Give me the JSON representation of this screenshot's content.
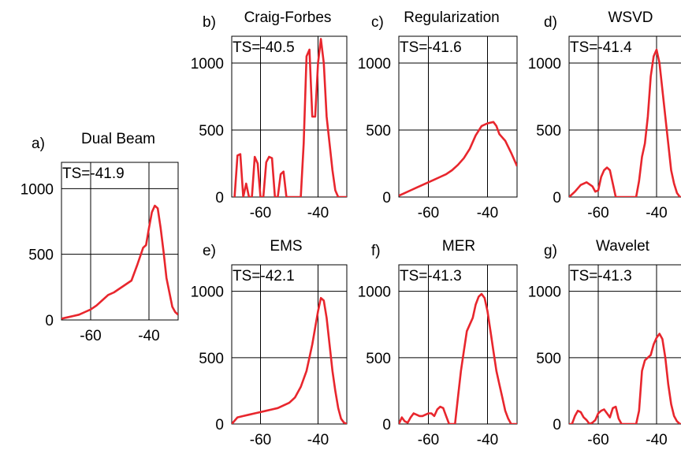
{
  "colors": {
    "line": "#e8262d",
    "axis": "#000000",
    "background": "#ffffff"
  },
  "chart_data": [
    {
      "type": "line",
      "letter": "a)",
      "title": "Dual Beam",
      "annotation": "TS=-41.9",
      "xlim": [
        -70,
        -30
      ],
      "ylim": [
        0,
        1200
      ],
      "xticks": [
        -60,
        -40
      ],
      "xtick_labels": [
        "-60",
        "-40"
      ],
      "yticks": [
        0,
        500,
        1000
      ],
      "ytick_labels": [
        "0",
        "500",
        "1000"
      ],
      "grid": true,
      "series": [
        {
          "x": [
            -70,
            -68,
            -66,
            -64,
            -62,
            -60,
            -58,
            -56,
            -54,
            -52,
            -50,
            -48,
            -46,
            -44,
            -42,
            -41,
            -40,
            -39,
            -38,
            -37,
            -36,
            -35,
            -34,
            -32,
            -31,
            -30
          ],
          "y": [
            10,
            20,
            30,
            40,
            60,
            80,
            110,
            150,
            190,
            210,
            240,
            270,
            300,
            420,
            550,
            570,
            700,
            820,
            870,
            850,
            700,
            520,
            320,
            100,
            60,
            40
          ]
        }
      ]
    },
    {
      "type": "line",
      "letter": "b)",
      "title": "Craig-Forbes",
      "annotation": "TS=-40.5",
      "xlim": [
        -70,
        -30
      ],
      "ylim": [
        0,
        1200
      ],
      "xticks": [
        -60,
        -40
      ],
      "xtick_labels": [
        "-60",
        "-40"
      ],
      "yticks": [
        0,
        500,
        1000
      ],
      "ytick_labels": [
        "0",
        "500",
        "1000"
      ],
      "grid": true,
      "series": [
        {
          "x": [
            -69,
            -68,
            -67,
            -66,
            -65,
            -64,
            -63,
            -62,
            -61,
            -60,
            -59,
            -58,
            -57,
            -56,
            -55,
            -54,
            -53,
            -52,
            -51,
            -50,
            -49,
            -48,
            -47,
            -46,
            -45,
            -44,
            -43,
            -42,
            -41,
            -40,
            -39,
            -38,
            -37,
            -36,
            -35,
            -34,
            -33,
            -32,
            -31,
            -30
          ],
          "y": [
            0,
            310,
            320,
            0,
            100,
            0,
            0,
            300,
            250,
            0,
            0,
            260,
            300,
            290,
            0,
            0,
            170,
            190,
            0,
            0,
            0,
            0,
            0,
            0,
            400,
            1050,
            1100,
            600,
            600,
            1000,
            1180,
            1000,
            600,
            400,
            200,
            50,
            0,
            0,
            0,
            0
          ]
        }
      ]
    },
    {
      "type": "line",
      "letter": "c)",
      "title": "Regularization",
      "annotation": "TS=-41.6",
      "xlim": [
        -70,
        -30
      ],
      "ylim": [
        0,
        1200
      ],
      "xticks": [
        -60,
        -40
      ],
      "xtick_labels": [
        "-60",
        "-40"
      ],
      "yticks": [
        0,
        500,
        1000
      ],
      "ytick_labels": [
        "0",
        "500",
        "1000"
      ],
      "grid": true,
      "series": [
        {
          "x": [
            -70,
            -68,
            -66,
            -64,
            -62,
            -60,
            -58,
            -56,
            -54,
            -52,
            -50,
            -48,
            -46,
            -44,
            -42,
            -40,
            -38,
            -37,
            -36,
            -34,
            -32,
            -30
          ],
          "y": [
            10,
            30,
            50,
            70,
            90,
            110,
            130,
            150,
            170,
            200,
            240,
            290,
            360,
            460,
            530,
            550,
            560,
            530,
            470,
            420,
            330,
            230
          ]
        }
      ]
    },
    {
      "type": "line",
      "letter": "d)",
      "title": "WSVD",
      "annotation": "TS=-41.4",
      "xlim": [
        -70,
        -30
      ],
      "ylim": [
        0,
        1200
      ],
      "xticks": [
        -60,
        -40
      ],
      "xtick_labels": [
        "-60",
        "-40"
      ],
      "yticks": [
        0,
        500,
        1000
      ],
      "ytick_labels": [
        "0",
        "500",
        "1000"
      ],
      "grid": true,
      "series": [
        {
          "x": [
            -70,
            -68,
            -66,
            -64,
            -62,
            -61,
            -60,
            -59,
            -58,
            -57,
            -56,
            -55,
            -54,
            -53,
            -52,
            -51,
            -50,
            -49,
            -48,
            -47,
            -46,
            -45,
            -44,
            -43,
            -42,
            -41,
            -40,
            -39,
            -38,
            -37,
            -36,
            -35,
            -34,
            -33,
            -32,
            -31,
            -30
          ],
          "y": [
            0,
            40,
            90,
            110,
            80,
            40,
            50,
            150,
            200,
            220,
            200,
            100,
            0,
            0,
            0,
            0,
            0,
            0,
            0,
            0,
            120,
            300,
            400,
            600,
            900,
            1050,
            1100,
            1000,
            800,
            600,
            400,
            200,
            100,
            30,
            0,
            0,
            0
          ]
        }
      ]
    },
    {
      "type": "line",
      "letter": "e)",
      "title": "EMS",
      "annotation": "TS=-42.1",
      "xlim": [
        -70,
        -30
      ],
      "ylim": [
        0,
        1200
      ],
      "xticks": [
        -60,
        -40
      ],
      "xtick_labels": [
        "-60",
        "-40"
      ],
      "yticks": [
        0,
        500,
        1000
      ],
      "ytick_labels": [
        "0",
        "500",
        "1000"
      ],
      "grid": true,
      "series": [
        {
          "x": [
            -70,
            -68,
            -66,
            -64,
            -62,
            -60,
            -58,
            -56,
            -54,
            -52,
            -50,
            -48,
            -46,
            -44,
            -42,
            -40,
            -39,
            -38,
            -37,
            -36,
            -35,
            -34,
            -33,
            -32,
            -31,
            -30
          ],
          "y": [
            0,
            50,
            60,
            70,
            80,
            90,
            100,
            110,
            120,
            140,
            160,
            200,
            280,
            400,
            600,
            850,
            950,
            930,
            800,
            600,
            400,
            250,
            120,
            40,
            10,
            0
          ]
        }
      ]
    },
    {
      "type": "line",
      "letter": "f)",
      "title": "MER",
      "annotation": "TS=-41.3",
      "xlim": [
        -70,
        -30
      ],
      "ylim": [
        0,
        1200
      ],
      "xticks": [
        -60,
        -40
      ],
      "xtick_labels": [
        "-60",
        "-40"
      ],
      "yticks": [
        0,
        500,
        1000
      ],
      "ytick_labels": [
        "0",
        "500",
        "1000"
      ],
      "grid": true,
      "series": [
        {
          "x": [
            -70,
            -69,
            -68,
            -67,
            -66,
            -65,
            -64,
            -63,
            -62,
            -61,
            -60,
            -59,
            -58,
            -57,
            -56,
            -55,
            -54,
            -53,
            -52,
            -51,
            -50,
            -49,
            -48,
            -47,
            -46,
            -45,
            -44,
            -43,
            -42,
            -41,
            -40,
            -39,
            -38,
            -37,
            -36,
            -35,
            -34,
            -33,
            -32,
            -31,
            -30
          ],
          "y": [
            0,
            50,
            20,
            10,
            50,
            80,
            70,
            60,
            60,
            70,
            80,
            80,
            60,
            110,
            130,
            120,
            60,
            0,
            0,
            0,
            200,
            400,
            550,
            700,
            750,
            800,
            900,
            960,
            980,
            950,
            850,
            700,
            550,
            400,
            300,
            200,
            100,
            40,
            0,
            0,
            0
          ]
        }
      ]
    },
    {
      "type": "line",
      "letter": "g)",
      "title": "Wavelet",
      "annotation": "TS=-41.3",
      "xlim": [
        -70,
        -30
      ],
      "ylim": [
        0,
        1200
      ],
      "xticks": [
        -60,
        -40
      ],
      "xtick_labels": [
        "-60",
        "-40"
      ],
      "yticks": [
        0,
        500,
        1000
      ],
      "ytick_labels": [
        "0",
        "500",
        "1000"
      ],
      "grid": true,
      "series": [
        {
          "x": [
            -70,
            -69,
            -68,
            -67,
            -66,
            -65,
            -64,
            -63,
            -62,
            -61,
            -60,
            -59,
            -58,
            -57,
            -56,
            -55,
            -54,
            -53,
            -52,
            -51,
            -50,
            -49,
            -48,
            -47,
            -46,
            -45,
            -44,
            -43,
            -42,
            -41,
            -40,
            -39,
            -38,
            -37,
            -36,
            -35,
            -34,
            -33,
            -32,
            -31,
            -30
          ],
          "y": [
            0,
            0,
            60,
            100,
            90,
            50,
            30,
            0,
            10,
            30,
            80,
            100,
            110,
            80,
            50,
            120,
            130,
            40,
            0,
            0,
            0,
            0,
            0,
            0,
            100,
            400,
            480,
            500,
            520,
            600,
            650,
            680,
            640,
            500,
            300,
            150,
            60,
            20,
            0,
            0,
            0
          ]
        }
      ]
    }
  ]
}
